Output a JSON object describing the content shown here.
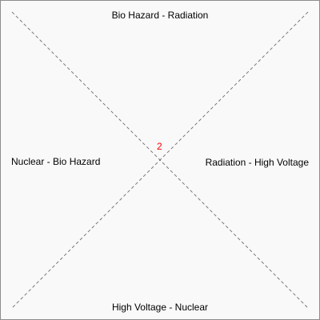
{
  "labels": {
    "top": "Bio Hazard - Radiation",
    "right": "Radiation - High Voltage",
    "bottom": "High Voltage - Nuclear",
    "left": "Nuclear - Bio Hazard"
  },
  "center_value": "2",
  "colors": {
    "background": "#f9f9f9",
    "border": "#8c8c8c",
    "diagonal": "#7a7a7a",
    "text": "#000000",
    "center_value": "#ff0000"
  }
}
